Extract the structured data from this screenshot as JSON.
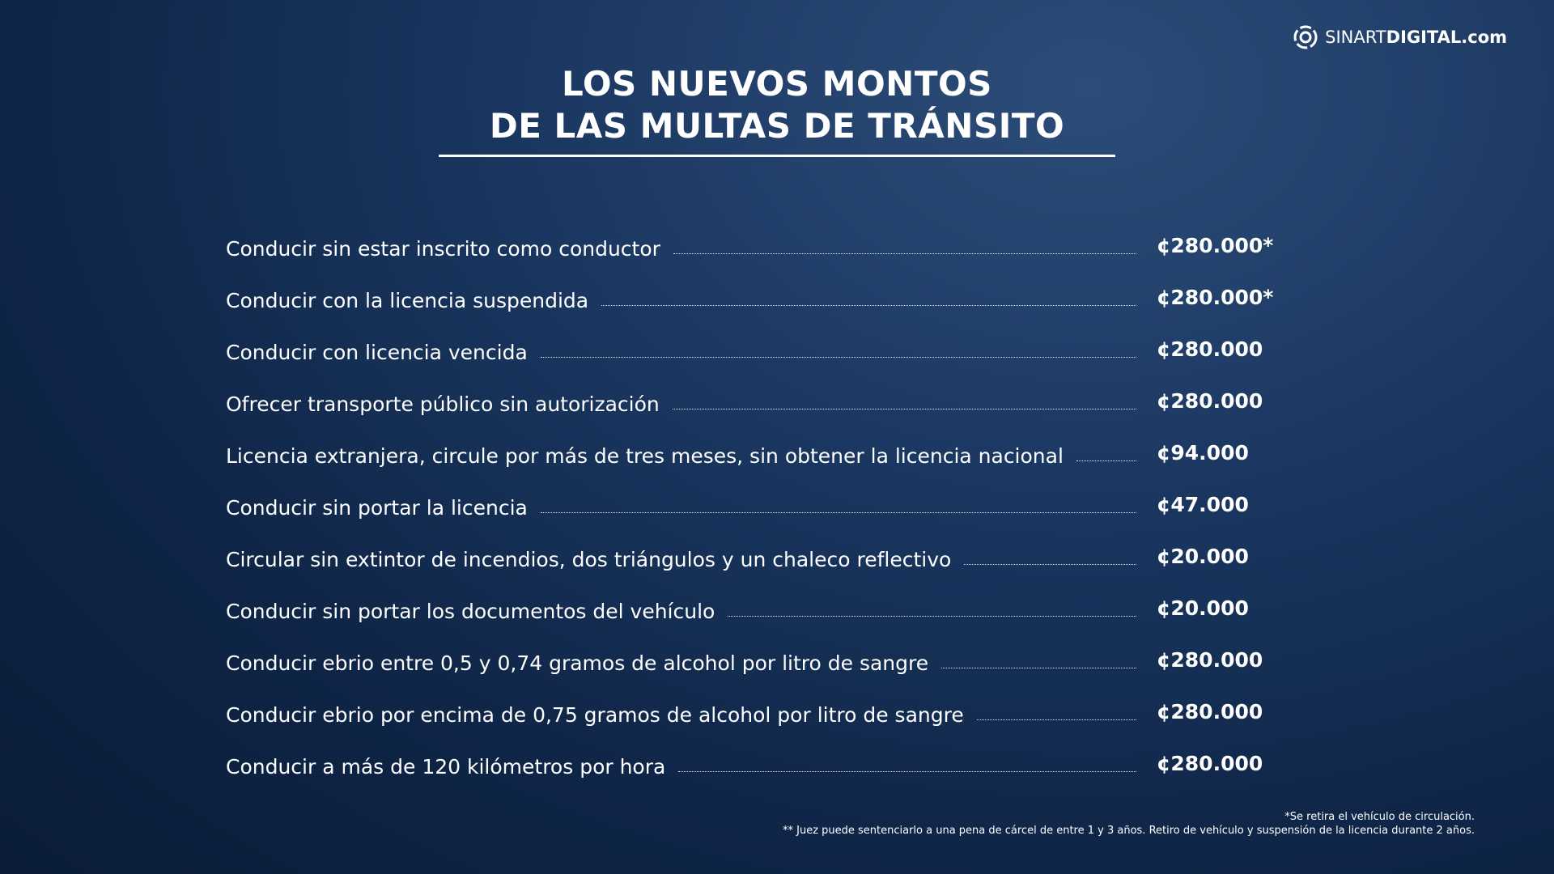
{
  "logo": {
    "text_light": "SINART",
    "text_bold": "DIGITAL.com"
  },
  "header": {
    "title_line1": "LOS NUEVOS MONTOS",
    "title_line2": "DE LAS MULTAS DE TRÁNSITO"
  },
  "table": {
    "rows": [
      [
        "Conducir sin estar inscrito como conductor",
        "¢280.000*"
      ],
      [
        "Conducir con la licencia suspendida",
        "¢280.000*"
      ],
      [
        "Conducir con licencia vencida",
        "¢280.000"
      ],
      [
        "Ofrecer transporte público sin autorización",
        "¢280.000"
      ],
      [
        "Licencia extranjera, circule por más de tres meses, sin obtener la licencia nacional",
        "¢94.000"
      ],
      [
        "Conducir sin portar la licencia",
        "¢47.000"
      ],
      [
        "Circular sin extintor de incendios, dos triángulos y un chaleco reflectivo",
        "¢20.000"
      ],
      [
        "Conducir sin portar los documentos del vehículo",
        "¢20.000"
      ],
      [
        "Conducir ebrio entre 0,5 y 0,74 gramos de alcohol por litro de sangre",
        "¢280.000"
      ],
      [
        "Conducir ebrio por encima de 0,75 gramos de alcohol por litro de sangre",
        "¢280.000"
      ],
      [
        "Conducir a más de 120 kilómetros por hora",
        "¢280.000"
      ]
    ]
  },
  "footnotes": [
    "*Se retira el vehículo de circulación.",
    "** Juez puede sentenciarlo a una pena de cárcel de entre 1 y 3 años. Retiro de vehículo y suspensión de la licencia durante 2 años."
  ]
}
